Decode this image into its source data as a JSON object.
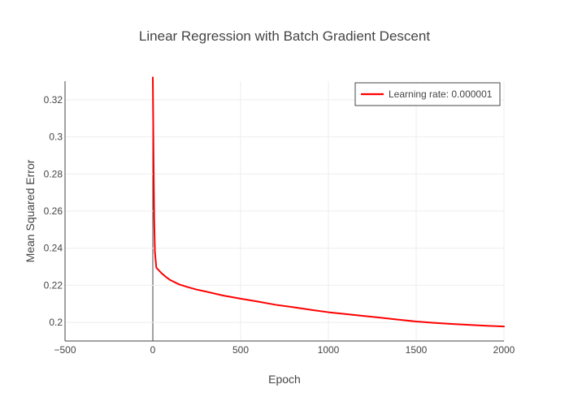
{
  "chart_data": {
    "type": "line",
    "title": "Linear Regression with Batch Gradient Descent",
    "xlabel": "Epoch",
    "ylabel": "Mean Squared Error",
    "xlim": [
      -500,
      2000
    ],
    "ylim": [
      0.19,
      0.33
    ],
    "x_ticks": [
      -500,
      0,
      500,
      1000,
      1500,
      2000
    ],
    "x_tick_labels": [
      "−500",
      "0",
      "500",
      "1000",
      "1500",
      "2000"
    ],
    "y_ticks": [
      0.2,
      0.22,
      0.24,
      0.26,
      0.28,
      0.3,
      0.32
    ],
    "y_tick_labels": [
      "0.2",
      "0.22",
      "0.24",
      "0.26",
      "0.28",
      "0.3",
      "0.32"
    ],
    "grid": true,
    "legend_position": "top-right",
    "series": [
      {
        "name": "Learning rate: 0.000001",
        "color": "#ff0000",
        "x": [
          0,
          2,
          5,
          8,
          12,
          20,
          30,
          50,
          75,
          100,
          150,
          200,
          250,
          300,
          400,
          500,
          600,
          700,
          800,
          900,
          1000,
          1100,
          1200,
          1300,
          1400,
          1500,
          1600,
          1700,
          1800,
          1900,
          2000
        ],
        "y": [
          0.332,
          0.31,
          0.28,
          0.255,
          0.238,
          0.2295,
          0.2285,
          0.2265,
          0.2245,
          0.2228,
          0.2205,
          0.219,
          0.2177,
          0.2167,
          0.2145,
          0.2128,
          0.2112,
          0.2095,
          0.2082,
          0.2068,
          0.2055,
          0.2045,
          0.2035,
          0.2025,
          0.2015,
          0.2005,
          0.1998,
          0.1992,
          0.1987,
          0.1982,
          0.1978
        ]
      }
    ]
  }
}
